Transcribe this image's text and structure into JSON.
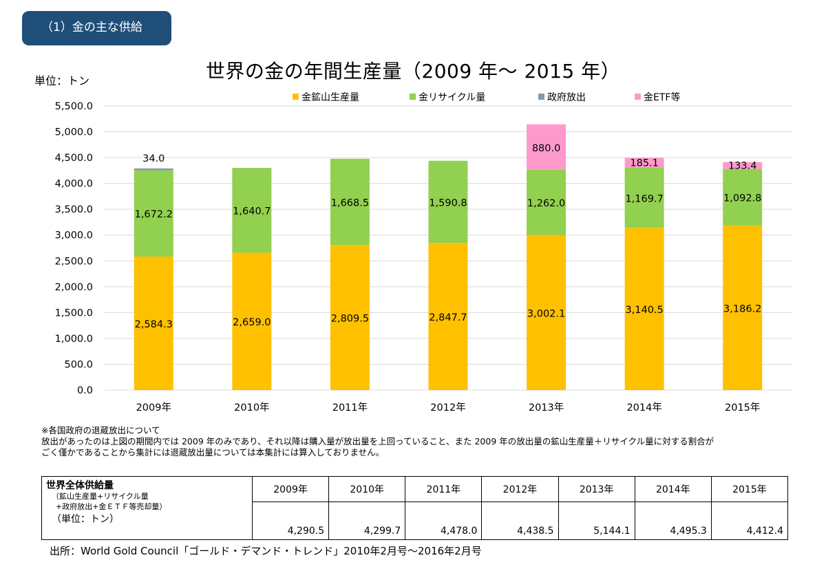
{
  "section_label": "（1）金の主な供給",
  "unit_label": "単位：トン",
  "chart_data": {
    "type": "bar",
    "stacked": true,
    "title": "世界の金の年間生産量（2009 年～ 2015 年）",
    "categories": [
      "2009年",
      "2010年",
      "2011年",
      "2012年",
      "2013年",
      "2014年",
      "2015年"
    ],
    "series": [
      {
        "name": "金鉱山生産量",
        "color": "#ffc000",
        "values": [
          2584.3,
          2659.0,
          2809.5,
          2847.7,
          3002.1,
          3140.5,
          3186.2
        ],
        "labels": [
          "2,584.3",
          "2,659.0",
          "2,809.5",
          "2,847.7",
          "3,002.1",
          "3,140.5",
          "3,186.2"
        ]
      },
      {
        "name": "金リサイクル量",
        "color": "#92d050",
        "values": [
          1672.2,
          1640.7,
          1668.5,
          1590.8,
          1262.0,
          1169.7,
          1092.8
        ],
        "labels": [
          "1,672.2",
          "1,640.7",
          "1,668.5",
          "1,590.8",
          "1,262.0",
          "1,169.7",
          "1,092.8"
        ]
      },
      {
        "name": "政府放出",
        "color": "#8497b0",
        "values": [
          34.0,
          0,
          0,
          0,
          0,
          0,
          0
        ],
        "labels": [
          "34.0",
          "",
          "",
          "",
          "",
          "",
          ""
        ]
      },
      {
        "name": "金ETF等",
        "color": "#ff99cc",
        "values": [
          0,
          0,
          0,
          0,
          880.0,
          185.1,
          133.4
        ],
        "labels": [
          "",
          "",
          "",
          "",
          "880.0",
          "185.1",
          "133.4"
        ]
      }
    ],
    "y_ticks": [
      "0.0",
      "500.0",
      "1,000.0",
      "1,500.0",
      "2,000.0",
      "2,500.0",
      "3,000.0",
      "3,500.0",
      "4,000.0",
      "4,500.0",
      "5,000.0",
      "5,500.0"
    ],
    "ylim": [
      0,
      5500
    ],
    "grid": true,
    "legend_position": "top"
  },
  "notes": {
    "line1": "※各国政府の退蔵放出について",
    "line2": "放出があったのは上図の期間内では 2009 年のみであり、それ以降は購入量が放出量を上回っていること、また 2009 年の放出量の鉱山生産量＋リサイクル量に対する割合が",
    "line3": "ごく僅かであることから集計には退蔵放出量については本集計には算入しておりません。"
  },
  "supply_table": {
    "header_title": "世界全体供給量",
    "header_sub1": "（鉱山生産量+リサイクル量",
    "header_sub2": "+政府放出+金ＥＴＦ等売却量）",
    "header_unit": "（単位：トン）",
    "years": [
      "2009年",
      "2010年",
      "2011年",
      "2012年",
      "2013年",
      "2014年",
      "2015年"
    ],
    "values": [
      "4,290.5",
      "4,299.7",
      "4,478.0",
      "4,438.5",
      "5,144.1",
      "4,495.3",
      "4,412.4"
    ]
  },
  "source": "出所：World Gold Council「ゴールド・デマンド・トレンド」2010年2月号～2016年2月号"
}
